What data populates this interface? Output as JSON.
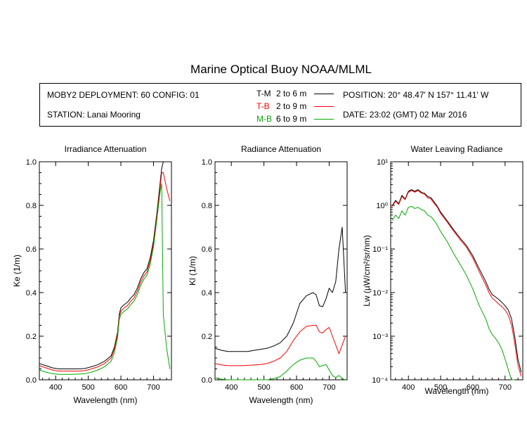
{
  "title": "Marine Optical Buoy NOAA/MLML",
  "info": {
    "deployment": "MOBY2 DEPLOYMENT: 60 CONFIG: 01",
    "station": "STATION: Lanai Mooring",
    "position": "POSITION: 20° 48.47' N   157° 11.41' W",
    "date": "DATE: 23:02 (GMT) 02 Mar 2016"
  },
  "legend": [
    {
      "code": "T-M",
      "range": "2 to 6  m",
      "color": "#000000"
    },
    {
      "code": "T-B",
      "range": "2 to 9  m",
      "color": "#ff0000"
    },
    {
      "code": "M-B",
      "range": "6 to 9  m",
      "color": "#00aa00"
    }
  ],
  "chart_data": [
    {
      "type": "line",
      "title": "Irradiance Attenuation",
      "xlabel": "Wavelength (nm)",
      "ylabel": "Ke  (1/m)",
      "xlim": [
        350,
        755
      ],
      "ylim": [
        0,
        1.0
      ],
      "xticks": [
        400,
        500,
        600,
        700
      ],
      "yticks": [
        0.0,
        0.2,
        0.4,
        0.6,
        0.8,
        1.0
      ],
      "ytick_labels": [
        "0.0",
        "0.2",
        "0.4",
        "0.6",
        "0.8",
        "1.0"
      ],
      "series": [
        {
          "color": "#000000",
          "x": [
            350,
            370,
            390,
            410,
            430,
            450,
            470,
            490,
            510,
            530,
            550,
            570,
            580,
            590,
            595,
            600,
            610,
            620,
            630,
            640,
            650,
            660,
            670,
            680,
            690,
            700,
            710,
            720,
            725,
            730,
            740,
            750
          ],
          "y": [
            0.075,
            0.065,
            0.055,
            0.05,
            0.05,
            0.05,
            0.05,
            0.052,
            0.06,
            0.07,
            0.085,
            0.11,
            0.15,
            0.22,
            0.3,
            0.33,
            0.345,
            0.355,
            0.375,
            0.39,
            0.42,
            0.46,
            0.49,
            0.51,
            0.56,
            0.64,
            0.76,
            0.9,
            0.97,
            1.0,
            1.0,
            1.0
          ]
        },
        {
          "color": "#ff0000",
          "x": [
            350,
            370,
            390,
            410,
            430,
            450,
            470,
            490,
            510,
            530,
            550,
            570,
            580,
            590,
            595,
            600,
            610,
            620,
            630,
            640,
            650,
            660,
            670,
            680,
            690,
            700,
            710,
            720,
            725,
            730,
            740,
            750
          ],
          "y": [
            0.065,
            0.055,
            0.045,
            0.04,
            0.04,
            0.04,
            0.04,
            0.042,
            0.05,
            0.06,
            0.075,
            0.1,
            0.14,
            0.21,
            0.29,
            0.315,
            0.33,
            0.34,
            0.36,
            0.375,
            0.405,
            0.445,
            0.475,
            0.495,
            0.545,
            0.625,
            0.745,
            0.88,
            0.95,
            0.95,
            0.88,
            0.82
          ]
        },
        {
          "color": "#00aa00",
          "x": [
            350,
            370,
            390,
            410,
            430,
            450,
            470,
            490,
            510,
            530,
            550,
            570,
            580,
            590,
            595,
            600,
            610,
            620,
            630,
            640,
            650,
            660,
            670,
            680,
            690,
            700,
            710,
            720,
            725,
            730,
            740,
            750
          ],
          "y": [
            0.045,
            0.035,
            0.028,
            0.025,
            0.025,
            0.025,
            0.026,
            0.028,
            0.035,
            0.045,
            0.06,
            0.085,
            0.125,
            0.195,
            0.275,
            0.3,
            0.315,
            0.325,
            0.345,
            0.36,
            0.39,
            0.43,
            0.46,
            0.48,
            0.53,
            0.61,
            0.73,
            0.86,
            0.9,
            0.3,
            0.15,
            0.05
          ]
        }
      ]
    },
    {
      "type": "line",
      "title": "Radiance Attenuation",
      "xlabel": "Wavelength (nm)",
      "ylabel": "Kl  (1/m)",
      "xlim": [
        350,
        755
      ],
      "ylim": [
        0,
        1.0
      ],
      "xticks": [
        400,
        500,
        600,
        700
      ],
      "yticks": [
        0.0,
        0.2,
        0.4,
        0.6,
        0.8,
        1.0
      ],
      "ytick_labels": [
        "0.0",
        "0.2",
        "0.4",
        "0.6",
        "0.8",
        "1.0"
      ],
      "series": [
        {
          "color": "#000000",
          "x": [
            350,
            370,
            390,
            410,
            430,
            450,
            470,
            490,
            510,
            530,
            550,
            570,
            590,
            610,
            630,
            650,
            660,
            670,
            680,
            690,
            700,
            710,
            720,
            730,
            740,
            750
          ],
          "y": [
            0.145,
            0.135,
            0.13,
            0.13,
            0.13,
            0.13,
            0.135,
            0.14,
            0.145,
            0.155,
            0.17,
            0.2,
            0.26,
            0.35,
            0.385,
            0.4,
            0.39,
            0.34,
            0.335,
            0.37,
            0.42,
            0.4,
            0.45,
            0.6,
            0.7,
            0.4
          ]
        },
        {
          "color": "#ff0000",
          "x": [
            350,
            370,
            390,
            410,
            430,
            450,
            470,
            490,
            510,
            530,
            550,
            570,
            590,
            610,
            630,
            650,
            660,
            670,
            680,
            690,
            700,
            710,
            720,
            730,
            740,
            750
          ],
          "y": [
            0.075,
            0.068,
            0.065,
            0.065,
            0.065,
            0.066,
            0.068,
            0.07,
            0.075,
            0.085,
            0.1,
            0.13,
            0.18,
            0.22,
            0.245,
            0.25,
            0.25,
            0.22,
            0.215,
            0.23,
            0.24,
            0.2,
            0.16,
            0.12,
            0.16,
            0.2
          ]
        },
        {
          "color": "#00aa00",
          "x": [
            350,
            370,
            390,
            410,
            430,
            450,
            470,
            490,
            510,
            530,
            550,
            570,
            590,
            610,
            630,
            650,
            660,
            670,
            680,
            690,
            700,
            710,
            720,
            730,
            740,
            750
          ],
          "y": [
            0.01,
            0.003,
            0.0,
            0.0,
            0.0,
            0.0,
            0.0,
            0.0,
            0.0,
            0.005,
            0.015,
            0.04,
            0.07,
            0.09,
            0.1,
            0.1,
            0.085,
            0.06,
            0.065,
            0.07,
            0.045,
            0.02,
            0.01,
            0.02,
            0.005,
            0.0
          ]
        }
      ]
    },
    {
      "type": "line",
      "title": "Water Leaving Radiance",
      "xlabel": "Wavelength (nm)",
      "ylabel": "Lw  (µW/cm²/sr/nm)",
      "xlim": [
        345,
        755
      ],
      "ylim": [
        0.0001,
        10
      ],
      "yscale": "log",
      "xticks": [
        400,
        500,
        600,
        700
      ],
      "yticks": [
        0.0001,
        0.001,
        0.01,
        0.1,
        1,
        10
      ],
      "ytick_labels": [
        "10⁻⁴",
        "10⁻³",
        "10⁻²",
        "10⁻¹",
        "10⁰",
        "10¹"
      ],
      "series": [
        {
          "color": "#000000",
          "x": [
            350,
            360,
            370,
            380,
            390,
            400,
            410,
            420,
            430,
            440,
            450,
            460,
            470,
            480,
            490,
            500,
            520,
            540,
            560,
            580,
            600,
            620,
            640,
            650,
            660,
            670,
            680,
            690,
            700,
            710,
            720,
            730,
            740,
            750
          ],
          "y": [
            1.0,
            1.3,
            1.1,
            1.7,
            1.4,
            2.1,
            2.3,
            2.1,
            2.3,
            2.0,
            1.9,
            1.6,
            1.5,
            1.2,
            0.95,
            0.7,
            0.45,
            0.28,
            0.18,
            0.12,
            0.07,
            0.035,
            0.018,
            0.012,
            0.009,
            0.008,
            0.007,
            0.006,
            0.005,
            0.004,
            0.0025,
            0.001,
            0.0003,
            0.00015
          ]
        },
        {
          "color": "#ff0000",
          "x": [
            350,
            360,
            370,
            380,
            390,
            400,
            410,
            420,
            430,
            440,
            450,
            460,
            470,
            480,
            490,
            500,
            520,
            540,
            560,
            580,
            600,
            620,
            640,
            650,
            660,
            670,
            680,
            690,
            700,
            710,
            720,
            730,
            740,
            750
          ],
          "y": [
            0.95,
            1.25,
            1.05,
            1.6,
            1.35,
            2.0,
            2.2,
            2.0,
            2.2,
            1.9,
            1.8,
            1.5,
            1.4,
            1.1,
            0.9,
            0.65,
            0.42,
            0.26,
            0.165,
            0.11,
            0.062,
            0.03,
            0.015,
            0.01,
            0.0075,
            0.0065,
            0.0055,
            0.0048,
            0.004,
            0.003,
            0.0018,
            0.0007,
            0.00022,
            0.00012
          ]
        },
        {
          "color": "#00aa00",
          "x": [
            350,
            360,
            370,
            380,
            390,
            400,
            410,
            420,
            430,
            440,
            450,
            460,
            470,
            480,
            490,
            500,
            520,
            540,
            560,
            580,
            600,
            620,
            640,
            650,
            660,
            670,
            680,
            690,
            700,
            710,
            720,
            730
          ],
          "y": [
            0.45,
            0.6,
            0.5,
            0.75,
            0.6,
            0.9,
            0.95,
            0.85,
            0.9,
            0.8,
            0.75,
            0.6,
            0.55,
            0.45,
            0.35,
            0.25,
            0.15,
            0.08,
            0.045,
            0.025,
            0.012,
            0.005,
            0.0025,
            0.0015,
            0.0011,
            0.0009,
            0.0007,
            0.0005,
            0.0003,
            0.00017,
            0.0001,
            0.0001
          ]
        }
      ]
    }
  ]
}
